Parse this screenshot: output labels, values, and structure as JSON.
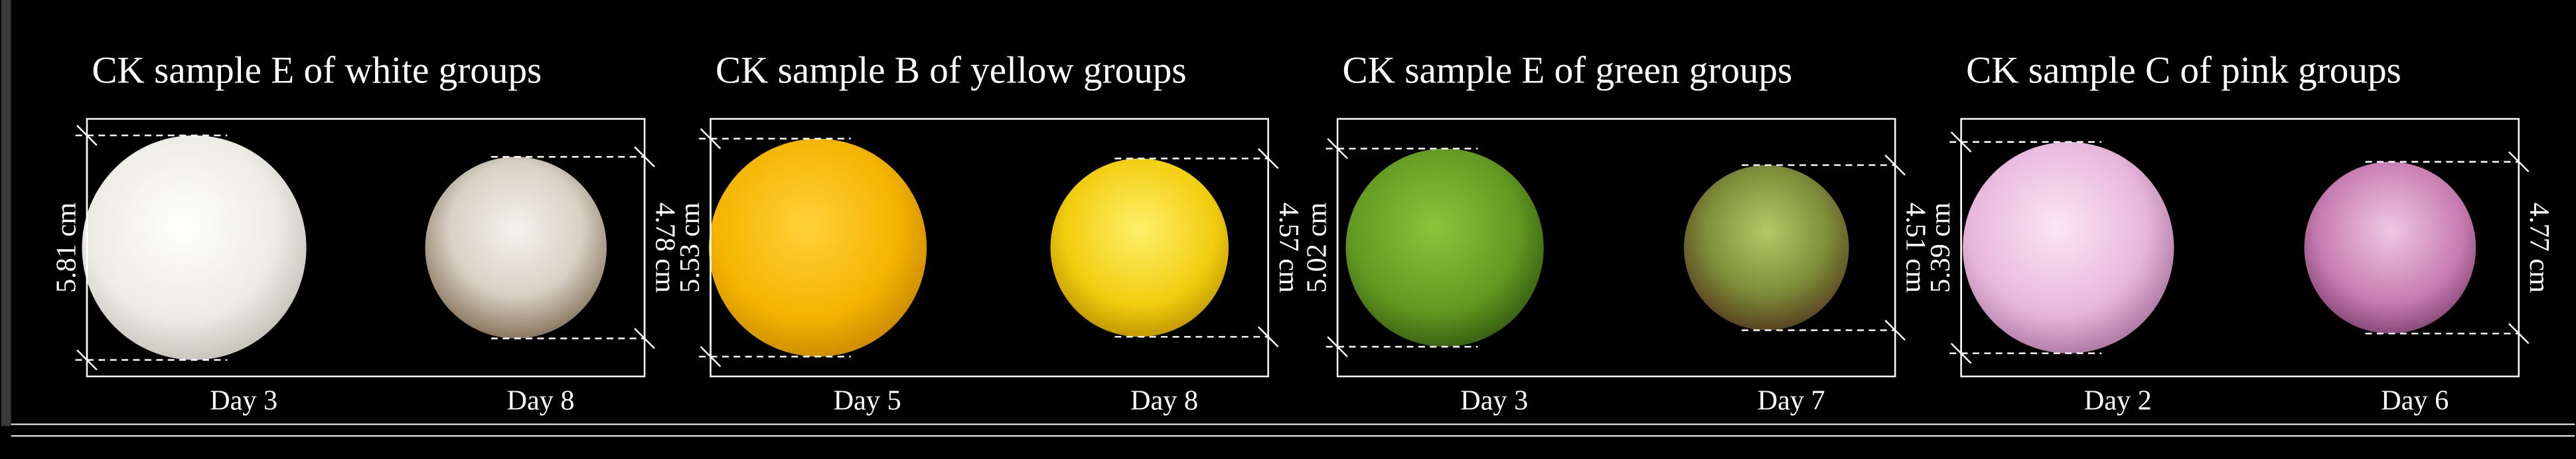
{
  "panels": [
    {
      "title": "CK sample E of white groups",
      "left": {
        "size": "5.81 cm",
        "day": "Day 3"
      },
      "right": {
        "size": "4.78 cm",
        "day": "Day 8"
      }
    },
    {
      "title": "CK sample B of yellow groups",
      "left": {
        "size": "5.53 cm",
        "day": "Day 5"
      },
      "right": {
        "size": "4.57 cm",
        "day": "Day 8"
      }
    },
    {
      "title": "CK sample E of green groups",
      "left": {
        "size": "5.02 cm",
        "day": "Day 3"
      },
      "right": {
        "size": "4.51 cm",
        "day": "Day 7"
      }
    },
    {
      "title": "CK sample C of pink groups",
      "left": {
        "size": "5.39 cm",
        "day": "Day 2"
      },
      "right": {
        "size": "4.77 cm",
        "day": "Day 6"
      }
    }
  ]
}
